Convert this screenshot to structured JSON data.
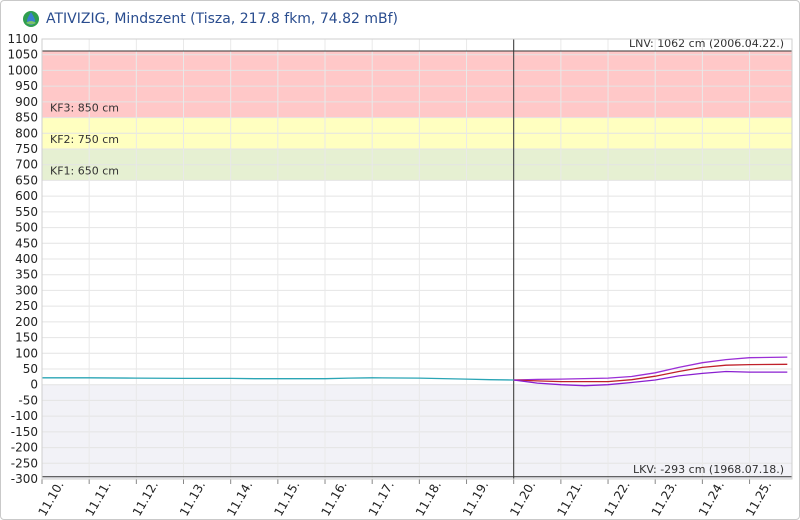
{
  "header": {
    "title": "ATIVIZIG, Mindszent (Tisza, 217.8 fkm, 74.82 mBf)",
    "logo_icon": "water-drop-leaf-logo"
  },
  "chart_data": {
    "type": "line",
    "title": "ATIVIZIG, Mindszent (Tisza, 217.8 fkm, 74.82 mBf)",
    "xlabel": "",
    "ylabel": "",
    "ylim": [
      -300,
      1100
    ],
    "y_ticks": [
      1100,
      1050,
      1000,
      950,
      900,
      850,
      800,
      750,
      700,
      650,
      600,
      550,
      500,
      450,
      400,
      350,
      300,
      250,
      200,
      150,
      100,
      50,
      0,
      -50,
      -100,
      -150,
      -200,
      -250,
      -300
    ],
    "x_ticks": [
      "11.10.",
      "11.11.",
      "11.12.",
      "11.13.",
      "11.14.",
      "11.15.",
      "11.16.",
      "11.17.",
      "11.18.",
      "11.19.",
      "11.20.",
      "11.21.",
      "11.22.",
      "11.23.",
      "11.24.",
      "11.25."
    ],
    "x_unit": "day offset from 11.10.",
    "current_time_x": 10,
    "grid": true,
    "zones": [
      {
        "label": "KF3: 850 cm",
        "from": 850,
        "to": 1062,
        "color": "#ffc8c8"
      },
      {
        "label": "KF2: 750 cm",
        "from": 750,
        "to": 850,
        "color": "#ffffc0"
      },
      {
        "label": "KF1: 650 cm",
        "from": 650,
        "to": 750,
        "color": "#e6f0d2"
      }
    ],
    "reference_lines": [
      {
        "label": "LNV: 1062 cm (2006.04.22.)",
        "value": 1062,
        "position": "top-right"
      },
      {
        "label": "LKV: -293 cm (1968.07.18.)",
        "value": -293,
        "position": "bottom-right"
      }
    ],
    "below_zero_fill": "#f2f2f7",
    "series": [
      {
        "color": "#2aa5b5",
        "points": [
          [
            0,
            22
          ],
          [
            1,
            22
          ],
          [
            2,
            21
          ],
          [
            3,
            20
          ],
          [
            4,
            20
          ],
          [
            4.5,
            19
          ],
          [
            5,
            19
          ],
          [
            6,
            19
          ],
          [
            6.5,
            21
          ],
          [
            7,
            22
          ],
          [
            8,
            21
          ],
          [
            9,
            18
          ],
          [
            9.5,
            16
          ],
          [
            10,
            15
          ]
        ]
      },
      {
        "color": "#9b2fd6",
        "points": [
          [
            10,
            15
          ],
          [
            10.5,
            17
          ],
          [
            11,
            18
          ],
          [
            12,
            21
          ],
          [
            12.5,
            26
          ],
          [
            13,
            38
          ],
          [
            13.5,
            55
          ],
          [
            14,
            70
          ],
          [
            14.5,
            80
          ],
          [
            15,
            86
          ],
          [
            15.8,
            88
          ]
        ]
      },
      {
        "color": "#c0202a",
        "points": [
          [
            10,
            15
          ],
          [
            10.5,
            12
          ],
          [
            11,
            10
          ],
          [
            12,
            10
          ],
          [
            12.5,
            16
          ],
          [
            13,
            27
          ],
          [
            13.5,
            42
          ],
          [
            14,
            55
          ],
          [
            14.5,
            62
          ],
          [
            15,
            64
          ],
          [
            15.8,
            65
          ]
        ]
      },
      {
        "color": "#8a1fd0",
        "points": [
          [
            10,
            15
          ],
          [
            10.5,
            5
          ],
          [
            11,
            0
          ],
          [
            11.5,
            -3
          ],
          [
            12,
            0
          ],
          [
            12.5,
            7
          ],
          [
            13,
            15
          ],
          [
            13.5,
            28
          ],
          [
            14,
            36
          ],
          [
            14.5,
            42
          ],
          [
            15,
            40
          ],
          [
            15.8,
            40
          ]
        ]
      }
    ]
  }
}
